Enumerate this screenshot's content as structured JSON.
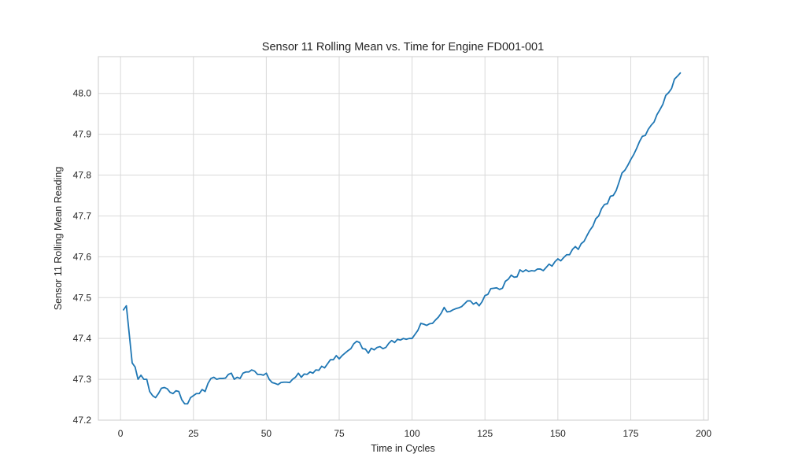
{
  "chart_data": {
    "type": "line",
    "title": "Sensor 11 Rolling Mean vs. Time for Engine FD001-001",
    "xlabel": "Time in Cycles",
    "ylabel": "Sensor 11 Rolling Mean Reading",
    "xlim": [
      -7.6,
      201.6
    ],
    "ylim": [
      47.2,
      48.09
    ],
    "xticks": [
      0,
      25,
      50,
      75,
      100,
      125,
      150,
      175,
      200
    ],
    "yticks": [
      47.2,
      47.3,
      47.4,
      47.5,
      47.6,
      47.7,
      47.8,
      47.9,
      48.0
    ],
    "grid": true,
    "legend": "none",
    "line_color": "#1f77b4",
    "series": [
      {
        "x": [
          1,
          2,
          3,
          4,
          5,
          6,
          7,
          8,
          9,
          10,
          11,
          12,
          13,
          14,
          15,
          16,
          17,
          18,
          19,
          20,
          21,
          22,
          23,
          24,
          25,
          26,
          27,
          28,
          29,
          30,
          31,
          32,
          33,
          34,
          35,
          36,
          37,
          38,
          39,
          40,
          41,
          42,
          43,
          44,
          45,
          46,
          47,
          48,
          49,
          50,
          51,
          52,
          53,
          54,
          55,
          56,
          57,
          58,
          59,
          60,
          61,
          62,
          63,
          64,
          65,
          66,
          67,
          68,
          69,
          70,
          71,
          72,
          73,
          74,
          75,
          76,
          77,
          78,
          79,
          80,
          81,
          82,
          83,
          84,
          85,
          86,
          87,
          88,
          89,
          90,
          91,
          92,
          93,
          94,
          95,
          96,
          97,
          98,
          99,
          100,
          101,
          102,
          103,
          104,
          105,
          106,
          107,
          108,
          109,
          110,
          111,
          112,
          113,
          114,
          115,
          116,
          117,
          118,
          119,
          120,
          121,
          122,
          123,
          124,
          125,
          126,
          127,
          128,
          129,
          130,
          131,
          132,
          133,
          134,
          135,
          136,
          137,
          138,
          139,
          140,
          141,
          142,
          143,
          144,
          145,
          146,
          147,
          148,
          149,
          150,
          151,
          152,
          153,
          154,
          155,
          156,
          157,
          158,
          159,
          160,
          161,
          162,
          163,
          164,
          165,
          166,
          167,
          168,
          169,
          170,
          171,
          172,
          173,
          174,
          175,
          176,
          177,
          178,
          179,
          180,
          181,
          182,
          183,
          184,
          185,
          186,
          187,
          188,
          189,
          190,
          191,
          192
        ],
        "y": [
          47.47,
          47.48,
          47.41,
          47.34,
          47.33,
          47.3,
          47.31,
          47.3,
          47.3,
          47.27,
          47.26,
          47.255,
          47.265,
          47.278,
          47.28,
          47.277,
          47.268,
          47.265,
          47.272,
          47.27,
          47.25,
          47.24,
          47.24,
          47.255,
          47.26,
          47.265,
          47.265,
          47.275,
          47.27,
          47.29,
          47.302,
          47.305,
          47.3,
          47.302,
          47.302,
          47.303,
          47.312,
          47.315,
          47.3,
          47.305,
          47.302,
          47.315,
          47.318,
          47.318,
          47.323,
          47.32,
          47.312,
          47.312,
          47.31,
          47.315,
          47.3,
          47.292,
          47.29,
          47.287,
          47.292,
          47.293,
          47.293,
          47.292,
          47.3,
          47.305,
          47.315,
          47.305,
          47.313,
          47.312,
          47.318,
          47.315,
          47.323,
          47.322,
          47.332,
          47.328,
          47.338,
          47.348,
          47.348,
          47.358,
          47.35,
          47.358,
          47.364,
          47.37,
          47.375,
          47.387,
          47.393,
          47.39,
          47.375,
          47.374,
          47.364,
          47.376,
          47.372,
          47.378,
          47.38,
          47.375,
          47.378,
          47.388,
          47.395,
          47.39,
          47.398,
          47.396,
          47.4,
          47.398,
          47.4,
          47.4,
          47.41,
          47.42,
          47.437,
          47.435,
          47.432,
          47.436,
          47.437,
          47.445,
          47.452,
          47.462,
          47.476,
          47.465,
          47.466,
          47.47,
          47.473,
          47.475,
          47.478,
          47.485,
          47.492,
          47.492,
          47.484,
          47.488,
          47.48,
          47.49,
          47.505,
          47.508,
          47.522,
          47.523,
          47.524,
          47.52,
          47.523,
          47.54,
          47.545,
          47.555,
          47.55,
          47.551,
          47.568,
          47.563,
          47.568,
          47.564,
          47.566,
          47.565,
          47.57,
          47.57,
          47.566,
          47.574,
          47.582,
          47.577,
          47.588,
          47.595,
          47.59,
          47.598,
          47.605,
          47.605,
          47.618,
          47.625,
          47.618,
          47.632,
          47.638,
          47.652,
          47.665,
          47.675,
          47.693,
          47.7,
          47.718,
          47.728,
          47.73,
          47.748,
          47.75,
          47.762,
          47.783,
          47.805,
          47.812,
          47.824,
          47.838,
          47.85,
          47.865,
          47.882,
          47.895,
          47.897,
          47.912,
          47.922,
          47.93,
          47.948,
          47.96,
          47.973,
          47.995,
          48.002,
          48.012,
          48.035,
          48.042,
          48.05
        ]
      }
    ]
  }
}
